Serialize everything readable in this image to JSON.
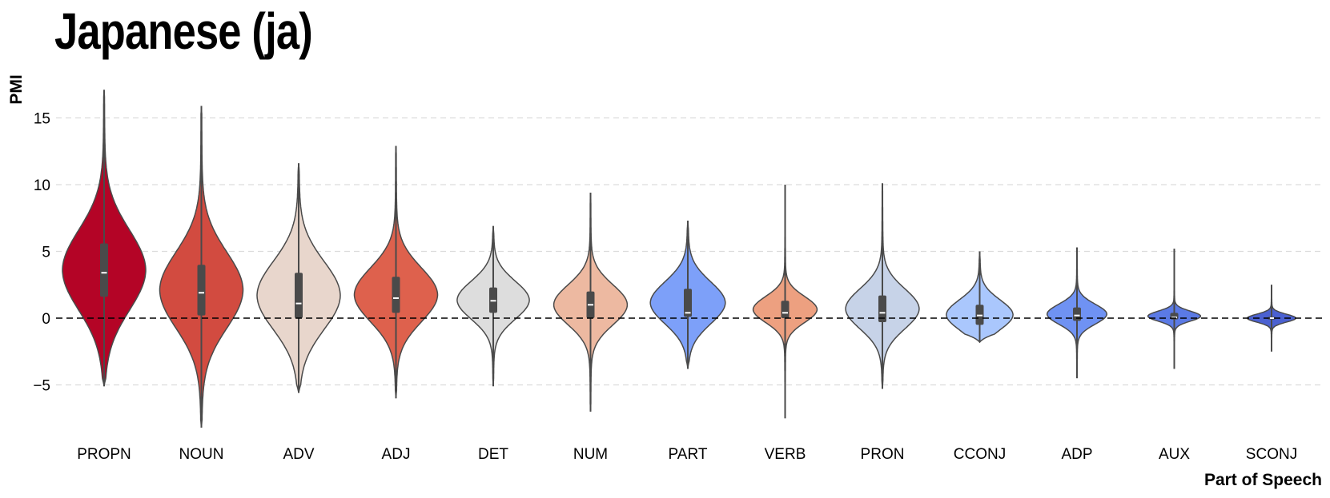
{
  "chart_data": {
    "type": "violin",
    "title": "Japanese (ja)",
    "xlabel": "Part of Speech",
    "ylabel": "PMI",
    "ylim": [
      -8.3,
      17.5
    ],
    "yticks": [
      -5,
      0,
      5,
      10,
      15
    ],
    "ytick_labels": [
      "−5",
      "0",
      "5",
      "10",
      "15"
    ],
    "grid": "horizontal dashed",
    "reference_line": 0,
    "categories": [
      "PROPN",
      "NOUN",
      "ADV",
      "ADJ",
      "DET",
      "NUM",
      "PART",
      "VERB",
      "PRON",
      "CCONJ",
      "ADP",
      "AUX",
      "SCONJ"
    ],
    "series": [
      {
        "category": "PROPN",
        "color": "#B40426",
        "min": -5.1,
        "q1": 1.6,
        "median": 3.4,
        "q3": 5.6,
        "max": 17.1
      },
      {
        "category": "NOUN",
        "color": "#D24B40",
        "min": -8.2,
        "q1": 0.2,
        "median": 1.9,
        "q3": 4.0,
        "max": 15.9
      },
      {
        "category": "ADV",
        "color": "#E8D6CC",
        "min": -5.6,
        "q1": 0.0,
        "median": 1.1,
        "q3": 3.4,
        "max": 11.6
      },
      {
        "category": "ADJ",
        "color": "#DE614D",
        "min": -6.0,
        "q1": 0.4,
        "median": 1.5,
        "q3": 3.1,
        "max": 12.9
      },
      {
        "category": "DET",
        "color": "#DDDDDD",
        "min": -5.1,
        "q1": 0.4,
        "median": 1.3,
        "q3": 2.3,
        "max": 6.9
      },
      {
        "category": "NUM",
        "color": "#EDB9A1",
        "min": -7.0,
        "q1": 0.0,
        "median": 1.0,
        "q3": 2.0,
        "max": 9.4
      },
      {
        "category": "PART",
        "color": "#7DA0F9",
        "min": -3.8,
        "q1": 0.1,
        "median": 0.4,
        "q3": 2.2,
        "max": 7.3
      },
      {
        "category": "VERB",
        "color": "#EDA080",
        "min": -7.5,
        "q1": 0.0,
        "median": 0.4,
        "q3": 1.3,
        "max": 10.0
      },
      {
        "category": "PRON",
        "color": "#C7D3E8",
        "min": -5.3,
        "q1": -0.3,
        "median": 0.4,
        "q3": 1.7,
        "max": 10.1
      },
      {
        "category": "CCONJ",
        "color": "#AAC7FD",
        "min": -1.8,
        "q1": -0.5,
        "median": 0.2,
        "q3": 1.0,
        "max": 5.0
      },
      {
        "category": "ADP",
        "color": "#6F92F3",
        "min": -4.5,
        "q1": -0.2,
        "median": 0.2,
        "q3": 0.8,
        "max": 5.3
      },
      {
        "category": "AUX",
        "color": "#5B7AE5",
        "min": -3.8,
        "q1": -0.1,
        "median": 0.05,
        "q3": 0.4,
        "max": 5.2
      },
      {
        "category": "SCONJ",
        "color": "#4B61D1",
        "min": -2.5,
        "q1": -0.1,
        "median": 0.0,
        "q3": 0.1,
        "max": 2.5
      }
    ]
  }
}
